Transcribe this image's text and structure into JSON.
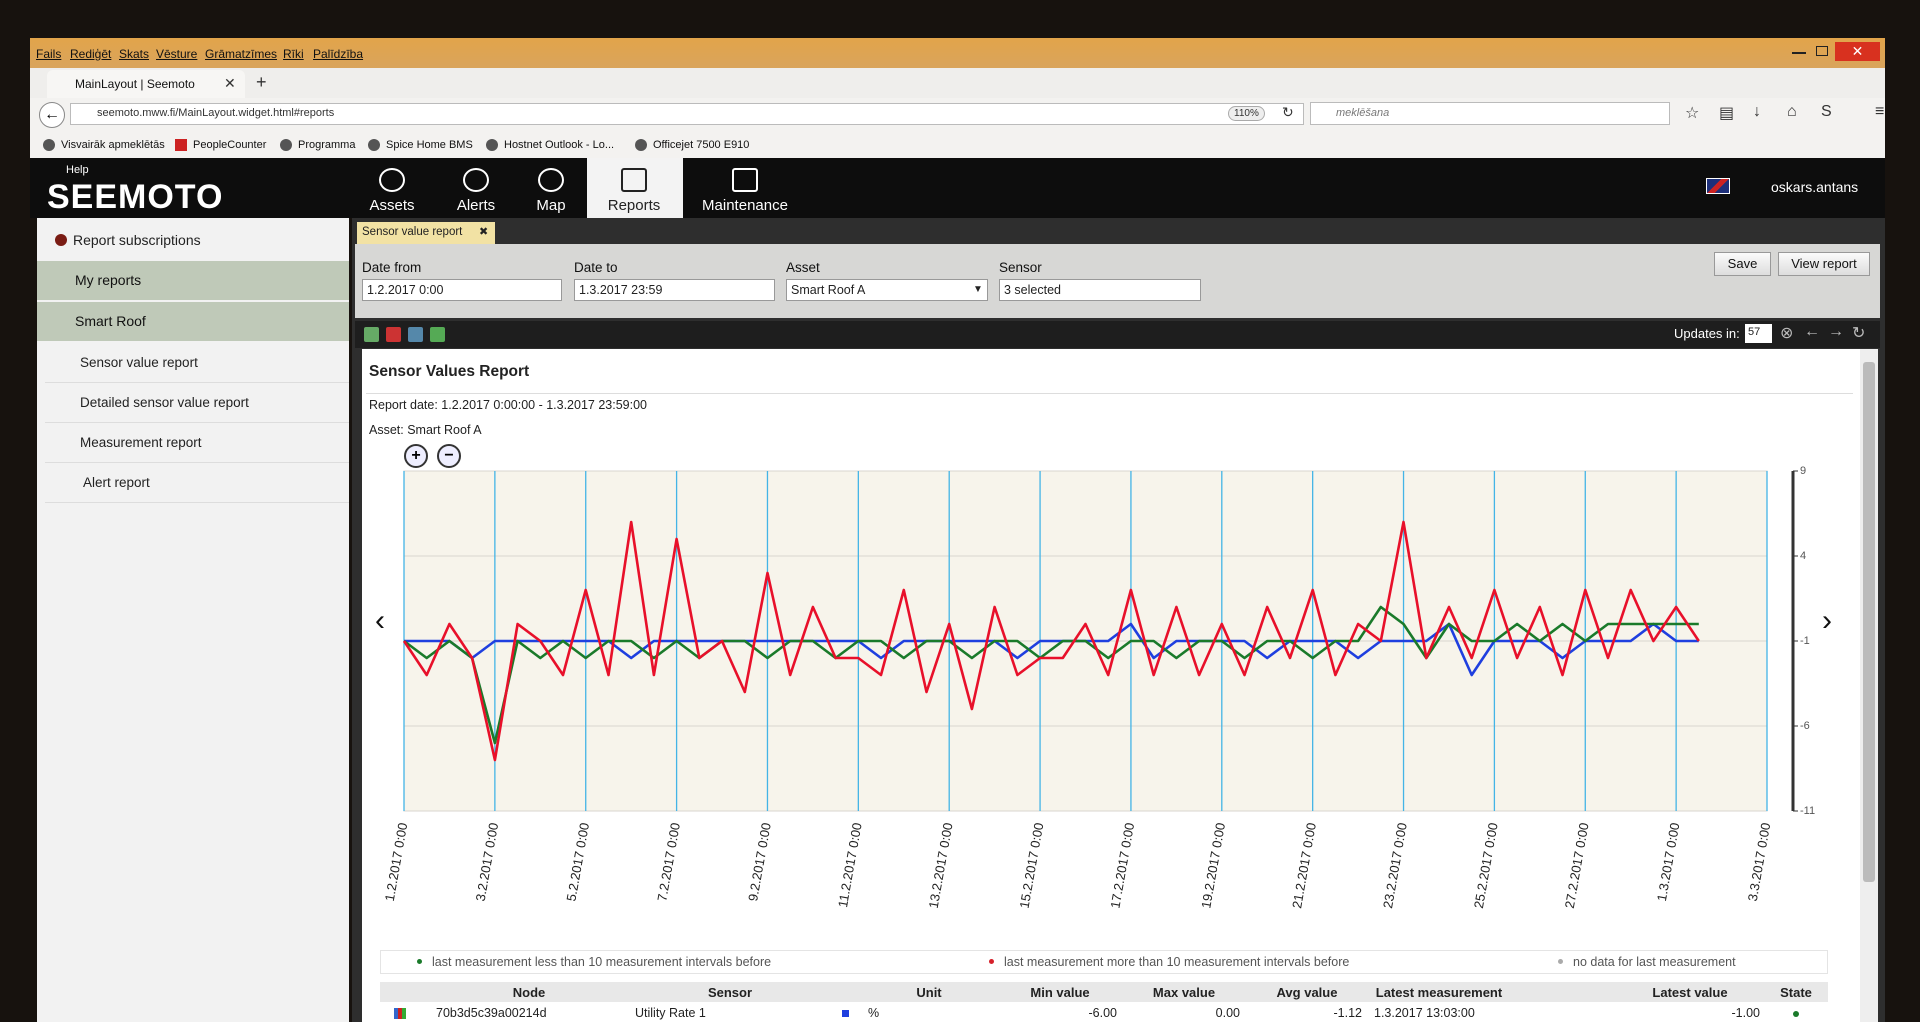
{
  "browser": {
    "menu": [
      "Fails",
      "Rediģēt",
      "Skats",
      "Vēsture",
      "Grāmatzīmes",
      "Rīki",
      "Palīdzība"
    ],
    "tab_title": "MainLayout | Seemoto",
    "url": "seemoto.mww.fi/MainLayout.widget.html#reports",
    "zoom": "110%",
    "search_placeholder": "meklēšana",
    "bookmarks": [
      "Visvairāk apmeklētās",
      "PeopleCounter",
      "Programma",
      "Spice Home BMS",
      "Hostnet Outlook - Lo...",
      "Officejet 7500 E910"
    ]
  },
  "app": {
    "help": "Help",
    "logo": "SEEMOTO",
    "nav": [
      "Assets",
      "Alerts",
      "Map",
      "Reports",
      "Maintenance"
    ],
    "user": "oskars.antans"
  },
  "sidebar": {
    "subscriptions": "Report subscriptions",
    "groups": [
      "My reports",
      "Smart Roof"
    ],
    "reports": [
      "Sensor value report",
      "Detailed sensor value report",
      "Measurement report",
      "Alert report"
    ]
  },
  "report_tab": "Sensor value report",
  "filters": [
    {
      "label": "Date from",
      "value": "1.2.2017 0:00"
    },
    {
      "label": "Date to",
      "value": "1.3.2017 23:59"
    },
    {
      "label": "Asset",
      "value": "Smart Roof A"
    },
    {
      "label": "Sensor",
      "value": "3 selected"
    }
  ],
  "buttons": [
    "Save",
    "View report"
  ],
  "toolbar": {
    "updates_label": "Updates in:",
    "updates_value": "57"
  },
  "report": {
    "title": "Sensor Values Report",
    "date": "Report date: 1.2.2017 0:00:00 - 1.3.2017 23:59:00",
    "asset": "Asset: Smart Roof A"
  },
  "chart_data": {
    "type": "line",
    "categories": [
      "1.2.2017 0:00",
      null,
      null,
      null,
      "3.2.2017 0:00",
      null,
      null,
      null,
      "5.2.2017 0:00",
      null,
      null,
      null,
      "7.2.2017 0:00",
      null,
      null,
      null,
      "9.2.2017 0:00",
      null,
      null,
      null,
      "11.2.2017 0:00",
      null,
      null,
      null,
      "13.2.2017 0:00",
      null,
      null,
      null,
      "15.2.2017 0:00",
      null,
      null,
      null,
      "17.2.2017 0:00",
      null,
      null,
      null,
      "19.2.2017 0:00",
      null,
      null,
      null,
      "21.2.2017 0:00",
      null,
      null,
      null,
      "23.2.2017 0:00",
      null,
      null,
      null,
      "25.2.2017 0:00",
      null,
      null,
      null,
      "27.2.2017 0:00",
      null,
      null,
      null,
      "1.3.2017 0:00",
      null,
      null,
      null,
      "3.3.2017 0:00"
    ],
    "series": [
      {
        "color": "#1f3fdf",
        "values": [
          -1,
          -1,
          -1,
          -2,
          -1,
          -1,
          -1,
          -1,
          -1,
          -1,
          -2,
          -1,
          -1,
          -1,
          -1,
          -1,
          -1,
          -1,
          -1,
          -1,
          -1,
          -2,
          -1,
          -1,
          -1,
          -1,
          -1,
          -2,
          -1,
          -1,
          -1,
          -1,
          0,
          -2,
          -1,
          -1,
          -1,
          -1,
          -2,
          -1,
          -1,
          -1,
          -2,
          -1,
          -1,
          -1,
          0,
          -3,
          -1,
          -1,
          -1,
          -2,
          -1,
          -1,
          -1,
          0,
          -1,
          -1,
          null,
          null,
          null
        ]
      },
      {
        "color": "#1a7a2a",
        "values": [
          -1,
          -2,
          -1,
          -2,
          -7,
          -1,
          -2,
          -1,
          -2,
          -1,
          -1,
          -2,
          -1,
          -2,
          -1,
          -1,
          -2,
          -1,
          -1,
          -2,
          -1,
          -1,
          -2,
          -1,
          -1,
          -2,
          -1,
          -1,
          -2,
          -1,
          -1,
          -2,
          -1,
          -1,
          -2,
          -1,
          -1,
          -2,
          -1,
          -1,
          -2,
          -1,
          -1,
          1,
          0,
          -2,
          0,
          -1,
          -1,
          0,
          -1,
          0,
          -1,
          0,
          0,
          0,
          0,
          0,
          null,
          null,
          null
        ]
      },
      {
        "color": "#e8102a",
        "values": [
          -1,
          -3,
          0,
          -2,
          -8,
          0,
          -1,
          -3,
          2,
          -3,
          6,
          -3,
          5,
          -2,
          -1,
          -4,
          3,
          -3,
          1,
          -2,
          -2,
          -3,
          2,
          -4,
          0,
          -5,
          1,
          -3,
          -2,
          -2,
          0,
          -3,
          2,
          -3,
          1,
          -3,
          0,
          -3,
          1,
          -2,
          2,
          -3,
          0,
          -1,
          6,
          -2,
          1,
          -2,
          2,
          -2,
          1,
          -3,
          2,
          -2,
          2,
          -1,
          1,
          -1,
          null,
          null,
          null
        ]
      }
    ],
    "ylim": [
      -11,
      9
    ],
    "yticks": [
      9,
      4,
      -1,
      -6,
      -11
    ],
    "grid": true
  },
  "status_legend": [
    "last measurement less than 10 measurement intervals before",
    "last measurement more than 10 measurement intervals before",
    "no data for last measurement"
  ],
  "table": {
    "columns": [
      "Node",
      "Sensor",
      "Unit",
      "Min value",
      "Max value",
      "Avg value",
      "Latest measurement",
      "Latest value",
      "State"
    ],
    "rows": [
      [
        "70b3d5c39a00214d",
        "Utility Rate 1",
        "%",
        "-6.00",
        "0.00",
        "-1.12",
        "1.3.2017 13:03:00",
        "-1.00"
      ]
    ]
  }
}
